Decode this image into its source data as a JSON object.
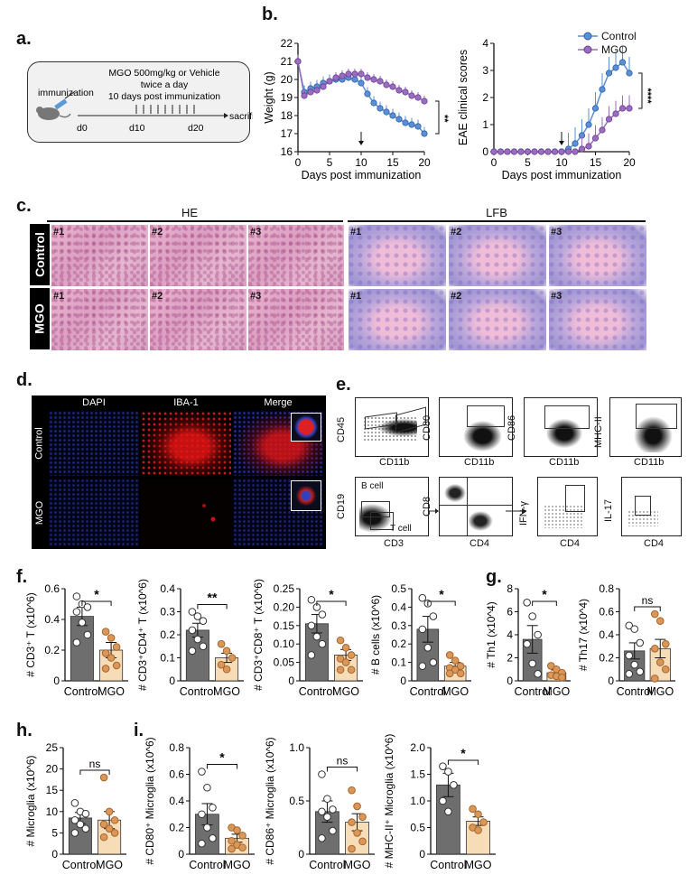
{
  "panels": {
    "a": "a.",
    "b": "b.",
    "c": "c.",
    "d": "d.",
    "e": "e.",
    "f": "f.",
    "g": "g.",
    "h": "h.",
    "i": "i."
  },
  "scheme": {
    "treatment_line1": "MGO 500mg/kg or Vehicle",
    "treatment_line2": "twice a day",
    "treatment_line3": "10 days post immunization",
    "immunization": "immunization",
    "sacrificed": "sacrified",
    "d0": "d0",
    "d10": "d10",
    "d20": "d20"
  },
  "legend": {
    "control": "Control",
    "mgo": "MGO"
  },
  "colors": {
    "control": "#5b8fd6",
    "mgo": "#9a6dbf",
    "bar_control": "#6e6e6e",
    "bar_mgo": "#f7dcb8",
    "dot_mgo": "#d9975a"
  },
  "histology": {
    "he_title": "HE",
    "lfb_title": "LFB",
    "row_control": "Control",
    "row_mgo": "MGO",
    "samples": [
      "#1",
      "#2",
      "#3"
    ]
  },
  "if_panel": {
    "columns": [
      "DAPI",
      "IBA-1",
      "Merge"
    ],
    "row_control": "Control",
    "row_mgo": "MGO"
  },
  "flow": {
    "cd45": "CD45",
    "cd11b": "CD11b",
    "cd80": "CD80",
    "cd86": "CD86",
    "mhcii": "MHC-II",
    "cd19": "CD19",
    "cd3": "CD3",
    "cd8": "CD8",
    "cd4": "CD4",
    "ifng": "IFN-γ",
    "il17": "IL-17",
    "b_cell": "B cell",
    "t_cell": "T cell"
  },
  "chart_data": [
    {
      "type": "line",
      "panel": "b-left",
      "xlabel": "Days post immunization",
      "ylabel": "Weight (g)",
      "xlim": [
        0,
        20
      ],
      "ylim": [
        16,
        22
      ],
      "xticks": [
        0,
        5,
        10,
        15,
        20
      ],
      "yticks": [
        16,
        17,
        18,
        19,
        20,
        21,
        22
      ],
      "x": [
        0,
        1,
        2,
        3,
        4,
        5,
        6,
        7,
        8,
        9,
        10,
        11,
        12,
        13,
        14,
        15,
        16,
        17,
        18,
        19,
        20
      ],
      "series": [
        {
          "name": "Control",
          "values": [
            21.0,
            19.3,
            19.5,
            19.6,
            19.8,
            19.9,
            20.0,
            20.0,
            20.1,
            20.0,
            19.8,
            19.2,
            18.7,
            18.4,
            18.2,
            18.0,
            17.8,
            17.6,
            17.5,
            17.4,
            17.0
          ]
        },
        {
          "name": "MGO",
          "values": [
            21.0,
            19.1,
            19.3,
            19.4,
            19.6,
            19.9,
            20.1,
            20.2,
            20.3,
            20.3,
            20.3,
            20.1,
            20.0,
            19.9,
            19.7,
            19.6,
            19.4,
            19.3,
            19.1,
            19.0,
            18.8
          ]
        }
      ],
      "annotation": "**",
      "arrow_at": 10
    },
    {
      "type": "line",
      "panel": "b-right",
      "xlabel": "Days post immunization",
      "ylabel": "EAE clinical scores",
      "xlim": [
        0,
        20
      ],
      "ylim": [
        0,
        4
      ],
      "xticks": [
        0,
        5,
        10,
        15,
        20
      ],
      "yticks": [
        0,
        1,
        2,
        3,
        4
      ],
      "x": [
        0,
        1,
        2,
        3,
        4,
        5,
        6,
        7,
        8,
        9,
        10,
        11,
        12,
        13,
        14,
        15,
        16,
        17,
        18,
        19,
        20
      ],
      "series": [
        {
          "name": "Control",
          "values": [
            0,
            0,
            0,
            0,
            0,
            0,
            0,
            0,
            0,
            0,
            0,
            0.1,
            0.3,
            0.6,
            1.0,
            1.6,
            2.3,
            2.9,
            3.1,
            3.3,
            2.9
          ]
        },
        {
          "name": "MGO",
          "values": [
            0,
            0,
            0,
            0,
            0,
            0,
            0,
            0,
            0,
            0,
            0,
            0,
            0,
            0.1,
            0.2,
            0.5,
            0.8,
            1.2,
            1.4,
            1.6,
            1.6
          ]
        }
      ],
      "annotation": "****",
      "arrow_at": 10
    },
    {
      "type": "bar",
      "panel": "f1",
      "ylabel": "# CD3⁺ T (x10^6)",
      "categories": [
        "Control",
        "MGO"
      ],
      "values": [
        0.42,
        0.2
      ],
      "errors": [
        0.06,
        0.05
      ],
      "ylim": [
        0,
        0.6
      ],
      "yticks": [
        0,
        0.2,
        0.4,
        0.6
      ],
      "ytick_labels": [
        "0",
        "0.2",
        "0.4",
        "0.6"
      ],
      "sig": "*",
      "points": [
        [
          0.55,
          0.5,
          0.48,
          0.45,
          0.38,
          0.3,
          0.25
        ],
        [
          0.32,
          0.28,
          0.22,
          0.18,
          0.15,
          0.1,
          0.08
        ]
      ]
    },
    {
      "type": "bar",
      "panel": "f2",
      "ylabel": "# CD3⁺CD4⁺ T (x10^6)",
      "categories": [
        "Control",
        "MGO"
      ],
      "values": [
        0.22,
        0.1
      ],
      "errors": [
        0.03,
        0.02
      ],
      "ylim": [
        0,
        0.4
      ],
      "yticks": [
        0,
        0.1,
        0.2,
        0.3,
        0.4
      ],
      "ytick_labels": [
        "0",
        "0.1",
        "0.2",
        "0.3",
        "0.4"
      ],
      "sig": "**",
      "points": [
        [
          0.3,
          0.28,
          0.26,
          0.22,
          0.18,
          0.15,
          0.13
        ],
        [
          0.16,
          0.13,
          0.1,
          0.07,
          0.05
        ]
      ]
    },
    {
      "type": "bar",
      "panel": "f3",
      "ylabel": "# CD3⁺CD8⁺ T (x10^6)",
      "categories": [
        "Control",
        "MGO"
      ],
      "values": [
        0.155,
        0.07
      ],
      "errors": [
        0.025,
        0.015
      ],
      "ylim": [
        0,
        0.25
      ],
      "yticks": [
        0,
        0.05,
        0.1,
        0.15,
        0.2,
        0.25
      ],
      "ytick_labels": [
        "0",
        "0.05",
        "0.10",
        "0.15",
        "0.20",
        "0.25"
      ],
      "sig": "*",
      "points": [
        [
          0.22,
          0.2,
          0.18,
          0.15,
          0.12,
          0.1,
          0.07
        ],
        [
          0.11,
          0.09,
          0.07,
          0.06,
          0.05,
          0.03,
          0.03
        ]
      ]
    },
    {
      "type": "bar",
      "panel": "f4",
      "ylabel": "# B cells (x10^6)",
      "categories": [
        "Control",
        "MGO"
      ],
      "values": [
        0.28,
        0.08
      ],
      "errors": [
        0.07,
        0.02
      ],
      "ylim": [
        0,
        0.5
      ],
      "yticks": [
        0,
        0.1,
        0.2,
        0.3,
        0.4,
        0.5
      ],
      "ytick_labels": [
        "0",
        "0.1",
        "0.2",
        "0.3",
        "0.4",
        "0.5"
      ],
      "sig": "*",
      "points": [
        [
          0.45,
          0.42,
          0.35,
          0.28,
          0.18,
          0.1,
          0.08
        ],
        [
          0.14,
          0.11,
          0.08,
          0.07,
          0.06,
          0.04,
          0.04
        ]
      ]
    },
    {
      "type": "bar",
      "panel": "g1",
      "ylabel": "# Th1 (x10^4)",
      "categories": [
        "Control",
        "MGO"
      ],
      "values": [
        3.6,
        0.7
      ],
      "errors": [
        1.2,
        0.25
      ],
      "ylim": [
        0,
        8
      ],
      "yticks": [
        0,
        2,
        4,
        6,
        8
      ],
      "ytick_labels": [
        "0",
        "2",
        "4",
        "6",
        "8"
      ],
      "sig": "*",
      "points": [
        [
          6.8,
          5.6,
          4.0,
          3.2,
          1.5,
          0.6
        ],
        [
          1.3,
          1.0,
          0.7,
          0.5,
          0.4,
          0.3
        ]
      ]
    },
    {
      "type": "bar",
      "panel": "g2",
      "ylabel": "# Th17 (x10^4)",
      "categories": [
        "Control",
        "MGO"
      ],
      "values": [
        0.26,
        0.28
      ],
      "errors": [
        0.07,
        0.08
      ],
      "ylim": [
        0,
        0.8
      ],
      "yticks": [
        0,
        0.2,
        0.4,
        0.6,
        0.8
      ],
      "ytick_labels": [
        "0",
        "0.2",
        "0.4",
        "0.6",
        "0.8"
      ],
      "sig": "ns",
      "points": [
        [
          0.48,
          0.45,
          0.33,
          0.22,
          0.14,
          0.08,
          0.06
        ],
        [
          0.58,
          0.52,
          0.32,
          0.28,
          0.16,
          0.1,
          0.02
        ]
      ]
    },
    {
      "type": "bar",
      "panel": "h1",
      "ylabel": "# Microglia (x10^6)",
      "categories": [
        "Control",
        "MGO"
      ],
      "values": [
        8.5,
        8.0
      ],
      "errors": [
        1.3,
        2.0
      ],
      "ylim": [
        0,
        25
      ],
      "yticks": [
        0,
        5,
        10,
        15,
        20,
        25
      ],
      "ytick_labels": [
        "0",
        "5",
        "10",
        "15",
        "20",
        "25"
      ],
      "sig": "ns",
      "points": [
        [
          12,
          10,
          9.5,
          8,
          7,
          6,
          5
        ],
        [
          18,
          10,
          8,
          7,
          6,
          5,
          4
        ]
      ]
    },
    {
      "type": "bar",
      "panel": "i1",
      "ylabel": "# CD80⁺ Microglia (x10^6)",
      "categories": [
        "Control",
        "MGO"
      ],
      "values": [
        0.3,
        0.12
      ],
      "errors": [
        0.08,
        0.03
      ],
      "ylim": [
        0,
        0.8
      ],
      "yticks": [
        0,
        0.2,
        0.4,
        0.6,
        0.8
      ],
      "ytick_labels": [
        "0",
        "0.2",
        "0.4",
        "0.6",
        "0.8"
      ],
      "sig": "*",
      "points": [
        [
          0.62,
          0.5,
          0.35,
          0.3,
          0.2,
          0.12,
          0.08
        ],
        [
          0.2,
          0.18,
          0.14,
          0.1,
          0.07,
          0.05,
          0.04
        ]
      ]
    },
    {
      "type": "bar",
      "panel": "i2",
      "ylabel": "# CD86⁺ Microglia (x10^6)",
      "categories": [
        "Control",
        "MGO"
      ],
      "values": [
        0.4,
        0.3
      ],
      "errors": [
        0.1,
        0.08
      ],
      "ylim": [
        0,
        1.0
      ],
      "yticks": [
        0,
        0.5,
        1.0
      ],
      "ytick_labels": [
        "0",
        "0.5",
        "1.0"
      ],
      "sig": "ns",
      "points": [
        [
          0.75,
          0.52,
          0.42,
          0.4,
          0.35,
          0.22,
          0.15
        ],
        [
          0.6,
          0.45,
          0.35,
          0.3,
          0.2,
          0.12,
          0.05
        ]
      ]
    },
    {
      "type": "bar",
      "panel": "i3",
      "ylabel": "# MHC-II⁺ Microglia (x10^6)",
      "categories": [
        "Control",
        "MGO"
      ],
      "values": [
        1.3,
        0.62
      ],
      "errors": [
        0.22,
        0.08
      ],
      "ylim": [
        0,
        2.0
      ],
      "yticks": [
        0,
        0.5,
        1.0,
        1.5,
        2.0
      ],
      "ytick_labels": [
        "0",
        "0.5",
        "1.0",
        "1.5",
        "2.0"
      ],
      "sig": "*",
      "points": [
        [
          1.65,
          1.55,
          1.3,
          1.0,
          0.8
        ],
        [
          0.85,
          0.75,
          0.6,
          0.5,
          0.45
        ]
      ]
    }
  ]
}
